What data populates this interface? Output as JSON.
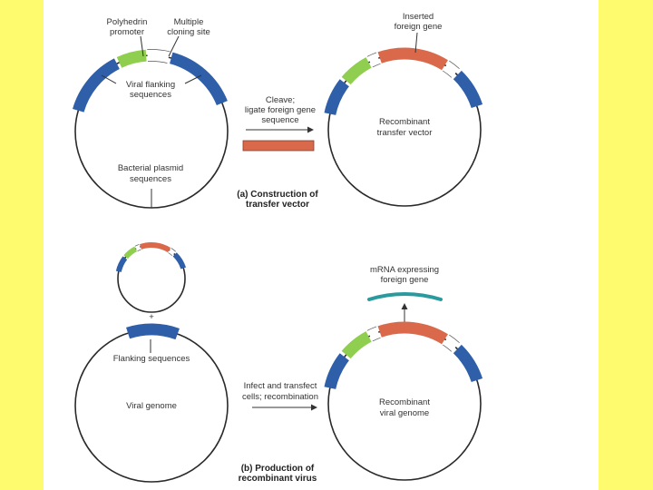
{
  "colors": {
    "page_background": "#fffb6e",
    "panel_background": "#ffffff",
    "flanking_sequence": "#2f5fa8",
    "polyhedrin_promoter": "#8fce4f",
    "foreign_gene": "#d9694a",
    "cloning_site": "#ffffff",
    "mrna": "#2a9a9e",
    "outline": "#2a2a2a"
  },
  "panel_a": {
    "polyhedrin_line1": "Polyhedrin",
    "polyhedrin_line2": "promoter",
    "cloning_line1": "Multiple",
    "cloning_line2": "cloning site",
    "flanking_line1": "Viral flanking",
    "flanking_line2": "sequences",
    "plasmid_line1": "Bacterial plasmid",
    "plasmid_line2": "sequences",
    "cleave_line1": "Cleave;",
    "cleave_line2": "ligate foreign gene",
    "cleave_line3": "sequence",
    "inserted_line1": "Inserted",
    "inserted_line2": "foreign gene",
    "recombinant_line1": "Recombinant",
    "recombinant_line2": "transfer vector",
    "caption_line1": "(a) Construction of",
    "caption_line2": "transfer vector"
  },
  "panel_b": {
    "plus_sign": "+",
    "flanking_label": "Flanking sequences",
    "viral_genome_label": "Viral genome",
    "infect_line1": "Infect and transfect",
    "infect_line2": "cells; recombination",
    "mrna_line1": "mRNA expressing",
    "mrna_line2": "foreign gene",
    "recombinant_line1": "Recombinant",
    "recombinant_line2": "viral genome",
    "caption_line1": "(b) Production of",
    "caption_line2": "recombinant virus"
  }
}
